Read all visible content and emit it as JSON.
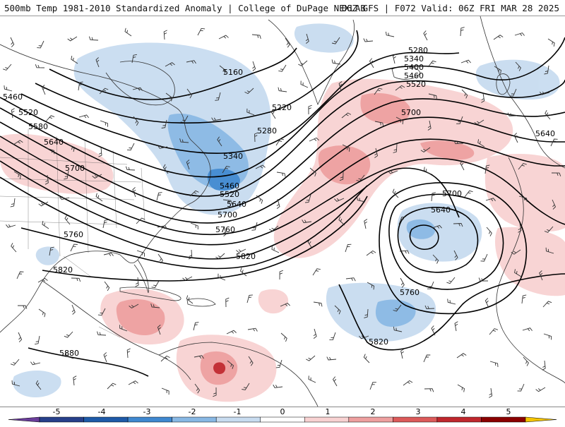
{
  "header": {
    "title_left": "500mb Temp 1981-2010 Standardized Anomaly | College of DuPage NEXLAB",
    "title_right": "06Z GFS | F072 Valid: 06Z FRI MAR 28 2025"
  },
  "colorbar": {
    "ticks": [
      "-5",
      "-4",
      "-3",
      "-2",
      "-1",
      "0",
      "1",
      "2",
      "3",
      "4",
      "5"
    ],
    "colors": [
      "#6a3d9a",
      "#27408b",
      "#1e5aa8",
      "#3f88d0",
      "#88b8e4",
      "#c8dcf0",
      "#ffffff",
      "#f8d2d2",
      "#ee9f9f",
      "#dc5a5a",
      "#c0272d",
      "#8b0000",
      "#f5c400"
    ]
  },
  "colors": {
    "cold_light": "#c8dcf0",
    "cold_mid": "#88b8e4",
    "cold_strong": "#3f88d0",
    "warm_light": "#f8d2d2",
    "warm_mid": "#ee9f9f",
    "warm_strong": "#dc5a5a",
    "warm_max": "#c0272d"
  },
  "height_contours": {
    "labels": [
      {
        "text": "5280"
      },
      {
        "text": "5340"
      },
      {
        "text": "5400"
      },
      {
        "text": "5460"
      },
      {
        "text": "5520"
      },
      {
        "text": "5700"
      },
      {
        "text": "5640"
      },
      {
        "text": "5160"
      },
      {
        "text": "5220"
      },
      {
        "text": "5280"
      },
      {
        "text": "5460"
      },
      {
        "text": "5520"
      },
      {
        "text": "5580"
      },
      {
        "text": "5640"
      },
      {
        "text": "5700"
      },
      {
        "text": "5340"
      },
      {
        "text": "5460"
      },
      {
        "text": "5520"
      },
      {
        "text": "5640"
      },
      {
        "text": "5700"
      },
      {
        "text": "5760"
      },
      {
        "text": "5760"
      },
      {
        "text": "5820"
      },
      {
        "text": "5820"
      },
      {
        "text": "5700"
      },
      {
        "text": "5640"
      },
      {
        "text": "5760"
      },
      {
        "text": "5820"
      },
      {
        "text": "5880"
      }
    ]
  }
}
